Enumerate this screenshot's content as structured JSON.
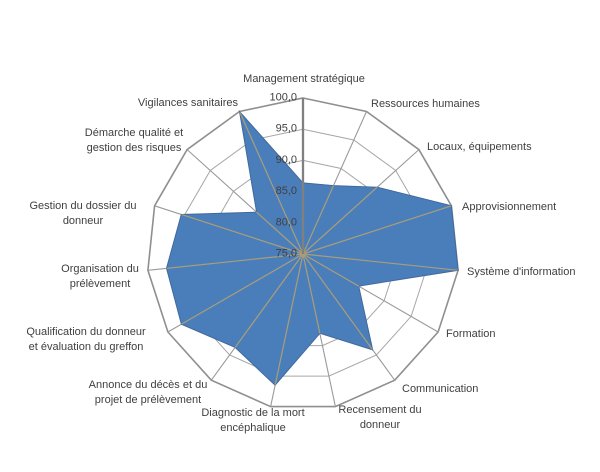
{
  "page": {
    "background": "#ffffff"
  },
  "chart_data": {
    "type": "radar",
    "title": "",
    "legend": "none",
    "categories": [
      "Management stratégique",
      "Ressources humaines",
      "Locaux, équipements",
      "Approvisionnement",
      "Système d'information",
      "Formation",
      "Communication",
      "Recensement du donneur",
      "Diagnostic de la mort encéphalique",
      "Annonce du décès et du projet de prélèvement",
      "Qualification du donneur et évaluation du greffon",
      "Organisation du prélèvement",
      "Gestion du dossier du donneur",
      "Démarche qualité et gestion des risques",
      "Vigilances sanitaires"
    ],
    "category_label_lines": [
      [
        "Management stratégique"
      ],
      [
        "Ressources humaines"
      ],
      [
        "Locaux, équipements"
      ],
      [
        "Approvisionnement"
      ],
      [
        "Système d'information"
      ],
      [
        "Formation"
      ],
      [
        "Communication"
      ],
      [
        "Recensement du",
        "donneur"
      ],
      [
        "Diagnostic de la mort",
        "encéphalique"
      ],
      [
        "Annonce du décès et du",
        "projet de prélèvement"
      ],
      [
        "Qualification du donneur",
        "et évaluation du greffon"
      ],
      [
        "Organisation du",
        "prélèvement"
      ],
      [
        "Gestion du dossier du",
        "donneur"
      ],
      [
        "Démarche qualité et",
        "gestion des risques"
      ],
      [
        "Vigilances sanitaires"
      ]
    ],
    "series": [
      {
        "values": [
          86.4,
          87.0,
          91.0,
          100.0,
          100.0,
          85.3,
          94.0,
          88.0,
          96.5,
          93.5,
          97.5,
          97.0,
          95.5,
          85.0,
          100.0
        ]
      }
    ],
    "axis": {
      "min": 75,
      "max": 100,
      "step": 5,
      "tick_labels": [
        "100,0",
        "95,0",
        "90,0",
        "85,0",
        "80,0",
        "75,0"
      ],
      "grid": true
    },
    "colors": {
      "fill": "#4A7EBB",
      "fill_stroke": "#40699C",
      "grid_ring": "#A6A6A6",
      "outer_ring": "#8F8F8F",
      "spoke": "#9A9A9A",
      "spoke_over_fill": "#AA9D78",
      "value_axis": "#808080",
      "text": "#3F3F3F"
    }
  }
}
